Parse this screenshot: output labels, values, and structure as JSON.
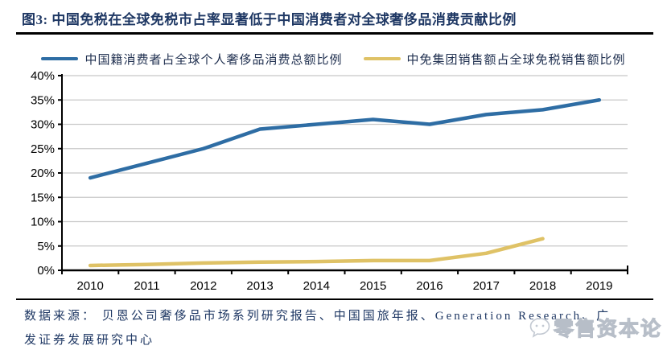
{
  "title": "图3:  中国免税在全球免税市占率显著低于中国消费者对全球奢侈品消费贡献比例",
  "colors": {
    "title_navy": "#1f3864",
    "series_blue": "#2e6da4",
    "series_gold": "#dfc266",
    "gridline": "#c8c8c8",
    "axis": "#000000",
    "watermark_gray": "#b7bec8"
  },
  "chart_data": {
    "type": "line",
    "title": "图3:  中国免税在全球免税市占率显著低于中国消费者对全球奢侈品消费贡献比例",
    "categories": [
      "2010",
      "2011",
      "2012",
      "2013",
      "2014",
      "2015",
      "2016",
      "2017",
      "2018",
      "2019"
    ],
    "series": [
      {
        "name": "中国籍消费者占全球个人奢侈品消费总额比例",
        "color": "#2e6da4",
        "values": [
          19,
          22,
          25,
          29,
          30,
          31,
          30,
          32,
          33,
          35
        ]
      },
      {
        "name": "中免集团销售额占全球免税销售额比例",
        "color": "#dfc266",
        "values": [
          1,
          1.2,
          1.5,
          1.7,
          1.8,
          2,
          2,
          3.5,
          6.5,
          null
        ]
      }
    ],
    "xlabel": "",
    "ylabel": "",
    "ylim": [
      0,
      40
    ],
    "y_tick_step": 5,
    "y_tick_labels": [
      "0%",
      "5%",
      "10%",
      "15%",
      "20%",
      "25%",
      "30%",
      "35%",
      "40%"
    ],
    "grid": "horizontal",
    "legend_position": "top"
  },
  "source": {
    "line1": "数据来源：  贝恩公司奢侈品市场系列研究报告、中国国旅年报、Generation Research、广",
    "line2": "发证券发展研究中心"
  },
  "watermark": {
    "text": "零售资本论"
  }
}
